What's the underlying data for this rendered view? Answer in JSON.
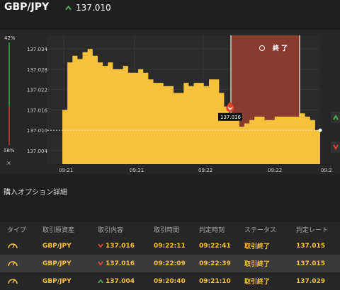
{
  "header": {
    "pair": "GBP/JPY",
    "price": "137.010",
    "trend_icon": "up-arrow-icon",
    "trend_color": "#4caf50"
  },
  "gauge": {
    "up_pct": "42%",
    "down_pct": "58%",
    "close_label": "×"
  },
  "chart_data": {
    "type": "area",
    "color": "#f6c23b",
    "y_ticks": [
      "137.034",
      "137.028",
      "137.022",
      "137.016",
      "137.010",
      "137.004"
    ],
    "x_ticks": [
      "09:21",
      "09:21",
      "09:22",
      "09:22",
      "09:2"
    ],
    "current_price_label": "137.016",
    "expiry_label": "終 了",
    "expiry_zone_color": "#8b3a2e",
    "ylim": [
      137.0,
      137.038
    ],
    "y": [
      137.016,
      137.03,
      137.032,
      137.031,
      137.033,
      137.034,
      137.032,
      137.03,
      137.029,
      137.03,
      137.028,
      137.028,
      137.029,
      137.027,
      137.027,
      137.028,
      137.027,
      137.025,
      137.024,
      137.024,
      137.023,
      137.023,
      137.021,
      137.021,
      137.024,
      137.023,
      137.024,
      137.024,
      137.023,
      137.025,
      137.025,
      137.021,
      137.017,
      137.015,
      137.013,
      137.011,
      137.012,
      137.013,
      137.014,
      137.014,
      137.013,
      137.013,
      137.014,
      137.014,
      137.014,
      137.014,
      137.014,
      137.015,
      137.014,
      137.013,
      137.01,
      137.007
    ]
  },
  "section": {
    "title": "購入オプション詳細"
  },
  "table": {
    "headers": [
      "タイプ",
      "取引原資産",
      "取引内容",
      "取引時間",
      "判定時刻",
      "ステータス",
      "判定レート"
    ],
    "rows": [
      {
        "type_icon": "gauge-icon",
        "asset": "GBP/JPY",
        "direction": "down",
        "value": "137.016",
        "time": "09:22:11",
        "judge": "09:22:41",
        "status": "取引終了",
        "rate": "137.015"
      },
      {
        "type_icon": "gauge-icon",
        "asset": "GBP/JPY",
        "direction": "down",
        "value": "137.016",
        "time": "09:22:09",
        "judge": "09:22:39",
        "status": "取引終了",
        "rate": "137.015"
      },
      {
        "type_icon": "gauge-icon",
        "asset": "GBP/JPY",
        "direction": "up",
        "value": "137.004",
        "time": "09:20:40",
        "judge": "09:21:10",
        "status": "取引終了",
        "rate": "137.029"
      }
    ]
  }
}
